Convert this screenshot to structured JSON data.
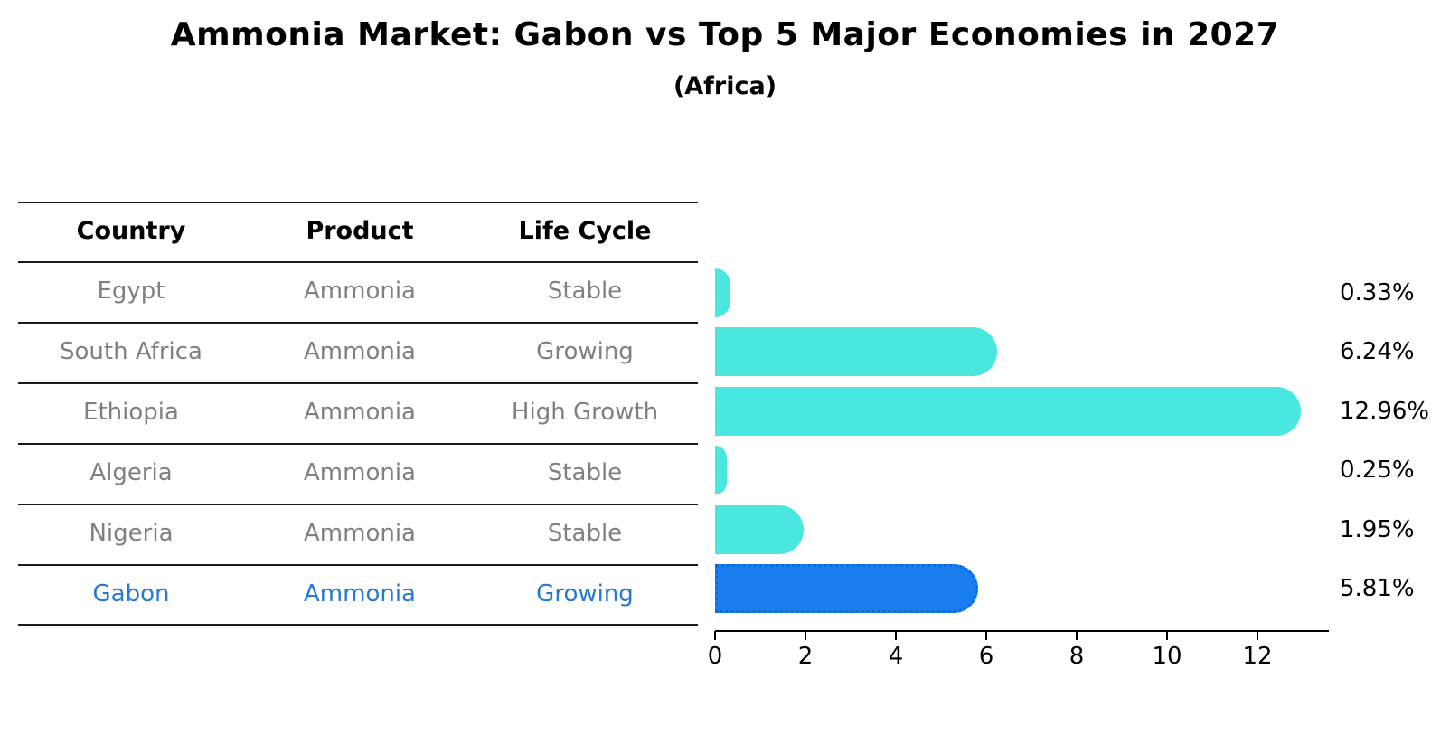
{
  "chart_data": {
    "type": "bar",
    "orientation": "horizontal",
    "title": "Ammonia Market: Gabon vs Top 5 Major Economies in 2027",
    "subtitle": "(Africa)",
    "xlabel": "",
    "ylabel": "",
    "xlim": [
      0,
      13.58
    ],
    "xticks": [
      "0",
      "2",
      "4",
      "6",
      "8",
      "10",
      "12"
    ],
    "grid": false,
    "legend": "none",
    "value_suffix": "%",
    "rows": [
      {
        "country": "Egypt",
        "product": "Ammonia",
        "life_cycle": "Stable",
        "value": 0.33,
        "label": "0.33%",
        "highlight": false
      },
      {
        "country": "South Africa",
        "product": "Ammonia",
        "life_cycle": "Growing",
        "value": 6.24,
        "label": "6.24%",
        "highlight": false
      },
      {
        "country": "Ethiopia",
        "product": "Ammonia",
        "life_cycle": "High Growth",
        "value": 12.96,
        "label": "12.96%",
        "highlight": false
      },
      {
        "country": "Algeria",
        "product": "Ammonia",
        "life_cycle": "Stable",
        "value": 0.25,
        "label": "0.25%",
        "highlight": false
      },
      {
        "country": "Nigeria",
        "product": "Ammonia",
        "life_cycle": "Stable",
        "value": 1.95,
        "label": "1.95%",
        "highlight": false
      },
      {
        "country": "Gabon",
        "product": "Ammonia",
        "life_cycle": "Growing",
        "value": 5.81,
        "label": "5.81%",
        "highlight": true
      }
    ],
    "colors": {
      "bar": "#4ae7e1",
      "highlight_bar": "#1a7ef0",
      "highlight_bar_border": "#0e6cd8",
      "highlight_text": "#2878d0",
      "row_text": "#808080",
      "header_text": "#000000",
      "axis": "#000000"
    }
  },
  "table": {
    "headers": [
      "Country",
      "Product",
      "Life Cycle"
    ]
  }
}
